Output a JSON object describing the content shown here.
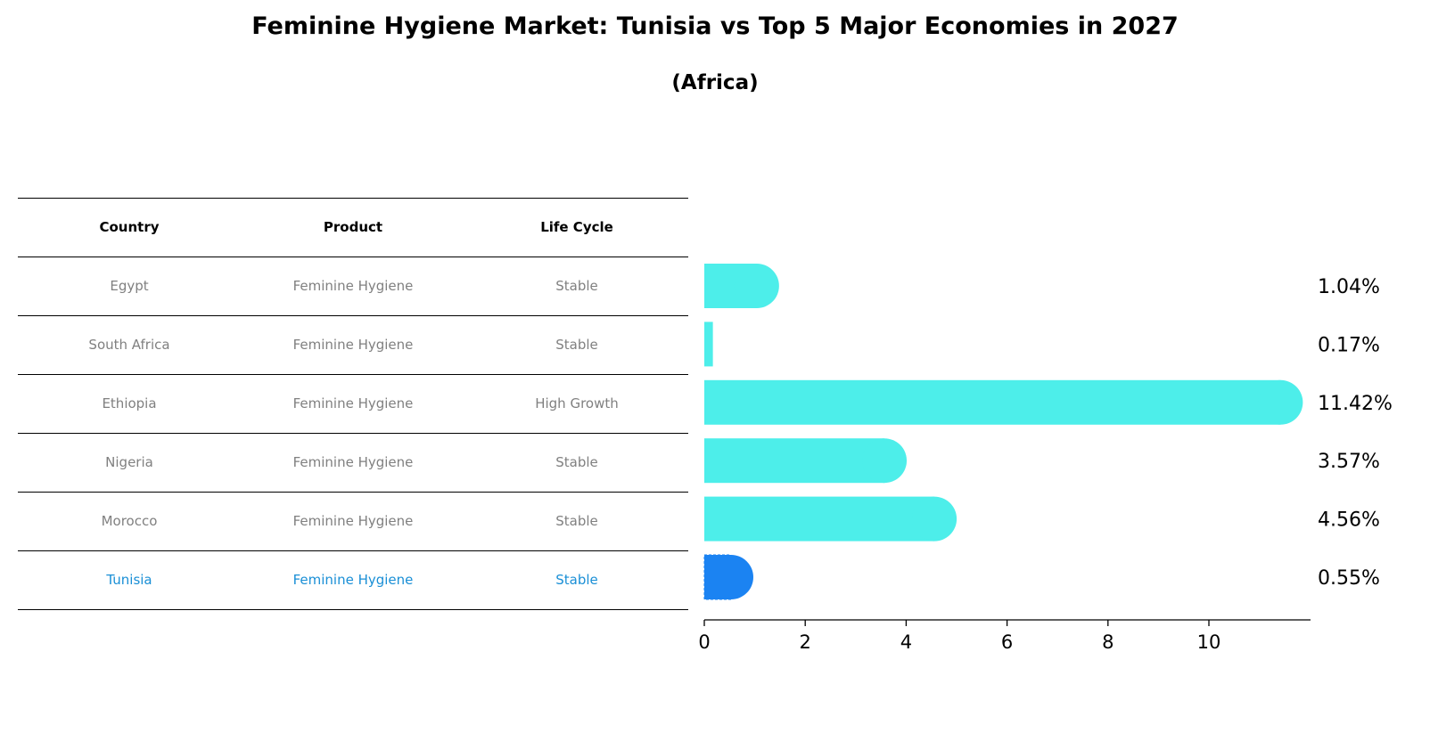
{
  "chart_data": {
    "type": "bar",
    "orientation": "horizontal",
    "title": "Feminine Hygiene Market: Tunisia vs Top 5 Major Economies in 2027",
    "subtitle": "(Africa)",
    "categories": [
      "Egypt",
      "South Africa",
      "Ethiopia",
      "Nigeria",
      "Morocco",
      "Tunisia"
    ],
    "values": [
      1.04,
      0.17,
      11.42,
      3.57,
      4.56,
      0.55
    ],
    "value_labels": [
      "1.04%",
      "0.17%",
      "11.42%",
      "3.57%",
      "4.56%",
      "0.55%"
    ],
    "highlight": "Tunisia",
    "xlim": [
      0,
      12
    ],
    "xticks": [
      0,
      2,
      4,
      6,
      8,
      10
    ],
    "xlabel": "",
    "ylabel": "",
    "colors": {
      "default": "#4DEEEA",
      "highlight": "#1B83F2"
    }
  },
  "table": {
    "headers": [
      "Country",
      "Product",
      "Life Cycle"
    ],
    "rows": [
      [
        "Egypt",
        "Feminine Hygiene",
        "Stable"
      ],
      [
        "South Africa",
        "Feminine Hygiene",
        "Stable"
      ],
      [
        "Ethiopia",
        "Feminine Hygiene",
        "High Growth"
      ],
      [
        "Nigeria",
        "Feminine Hygiene",
        "Stable"
      ],
      [
        "Morocco",
        "Feminine Hygiene",
        "Stable"
      ],
      [
        "Tunisia",
        "Feminine Hygiene",
        "Stable"
      ]
    ],
    "highlight_row": 5
  }
}
